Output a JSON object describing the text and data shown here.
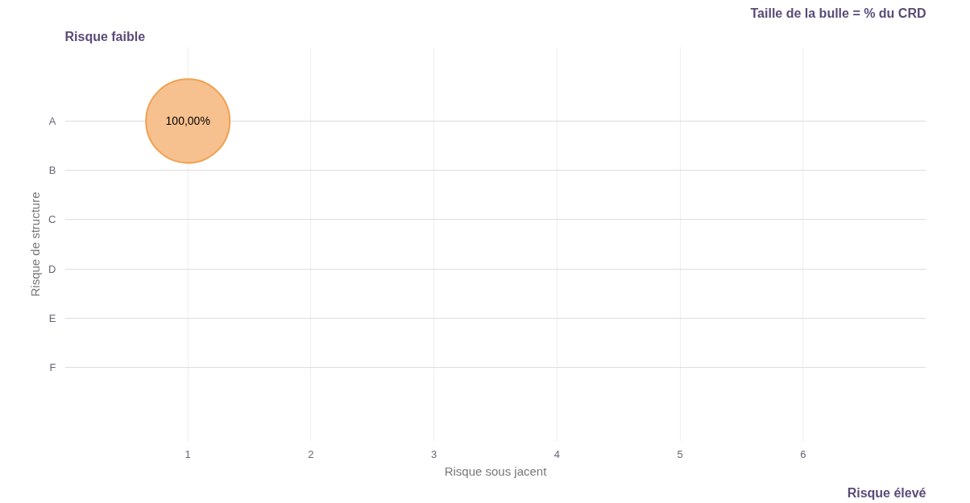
{
  "chart_data": {
    "type": "bubble",
    "orientation": "horizontal",
    "xlabel": "Risque sous jacent",
    "ylabel": "Risque de structure",
    "categories": [
      "A",
      "B",
      "C",
      "D",
      "E",
      "F"
    ],
    "series": [
      {
        "color": "#f7c08f",
        "values": [
          1,
          null,
          null,
          null,
          null,
          null
        ],
        "sizes": [
          1,
          null,
          null,
          null,
          null,
          null
        ],
        "value_labels": [
          "100,00%",
          null,
          null,
          null,
          null,
          null
        ]
      }
    ],
    "xlim": [
      0,
      7
    ],
    "xticks": [
      1,
      2,
      3,
      4,
      5,
      6
    ],
    "grid": true,
    "annotations": [
      "Risque faible",
      "Taille de la bulle = % du CRD",
      "Risque élevé"
    ]
  }
}
